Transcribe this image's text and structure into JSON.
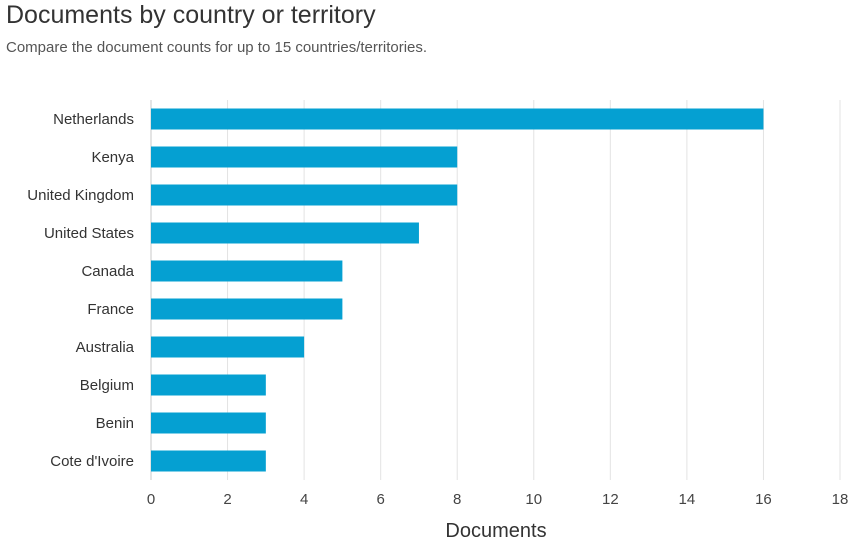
{
  "chart_data": {
    "type": "bar",
    "orientation": "horizontal",
    "title": "Documents by country or territory",
    "subtitle": "Compare the document counts for up to 15 countries/territories.",
    "xlabel": "Documents",
    "ylabel": "",
    "xlim": [
      0,
      18
    ],
    "xticks": [
      0,
      2,
      4,
      6,
      8,
      10,
      12,
      14,
      16,
      18
    ],
    "grid": true,
    "categories": [
      "Netherlands",
      "Kenya",
      "United Kingdom",
      "United States",
      "Canada",
      "France",
      "Australia",
      "Belgium",
      "Benin",
      "Cote d'Ivoire"
    ],
    "values": [
      16,
      8,
      8,
      7,
      5,
      5,
      4,
      3,
      3,
      3
    ],
    "bar_color": "#05a0d2",
    "grid_color": "#e3e3e3",
    "axis_color": "#c8c8c8"
  }
}
